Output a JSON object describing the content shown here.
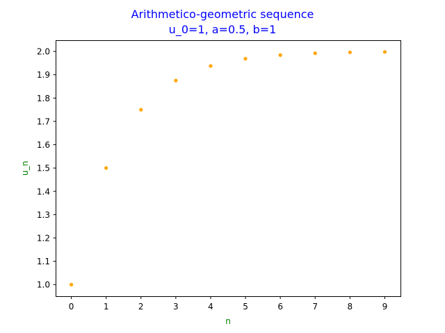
{
  "chart_data": {
    "type": "scatter",
    "title": "Arithmetico-geometric sequence",
    "subtitle": "u_0=1, a=0.5, b=1",
    "xlabel": "n",
    "ylabel": "u_n",
    "x": [
      0,
      1,
      2,
      3,
      4,
      5,
      6,
      7,
      8,
      9
    ],
    "y": [
      1.0,
      1.5,
      1.75,
      1.875,
      1.9375,
      1.96875,
      1.984375,
      1.9921875,
      1.99609375,
      1.998046875
    ],
    "xticks": [
      "0",
      "1",
      "2",
      "3",
      "4",
      "5",
      "6",
      "7",
      "8",
      "9"
    ],
    "yticks": [
      "1.0",
      "1.1",
      "1.2",
      "1.3",
      "1.4",
      "1.5",
      "1.6",
      "1.7",
      "1.8",
      "1.9",
      "2.0"
    ],
    "xlim": [
      -0.45,
      9.45
    ],
    "ylim": [
      0.9501,
      2.048
    ],
    "grid": false,
    "colors": {
      "points": "#FFA500",
      "title": "#0000FF",
      "axis_labels": "#008000",
      "axes": "#000000"
    }
  }
}
